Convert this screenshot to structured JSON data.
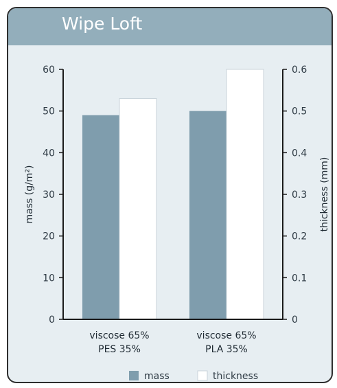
{
  "chart_data": {
    "type": "bar",
    "title": "Wipe Loft",
    "categories": [
      [
        "viscose  65%",
        "PES  35%"
      ],
      [
        "viscose  65%",
        "PLA  35%"
      ]
    ],
    "series": [
      {
        "name": "mass",
        "axis": "left",
        "values": [
          49,
          50
        ],
        "color": "#7f9dad"
      },
      {
        "name": "thickness",
        "axis": "right",
        "values": [
          0.53,
          0.6
        ],
        "color": "#ffffff"
      }
    ],
    "ylabel_left": "mass  (g/m²)",
    "ylabel_right": "thickness  (mm)",
    "ylim_left": [
      0,
      60
    ],
    "ylim_right": [
      0,
      0.6
    ],
    "yticks_left": [
      "0",
      "10",
      "20",
      "30",
      "40",
      "50",
      "60"
    ],
    "yticks_right": [
      "0",
      "0.1",
      "0.2",
      "0.3",
      "0.4",
      "0.5",
      "0.6"
    ],
    "grid": false,
    "legend": {
      "position": "bottom",
      "entries": [
        "mass",
        "thickness"
      ]
    },
    "colors": {
      "panel": "#e7eef2",
      "header": "#93aebb",
      "axis": "#1a1a1a"
    }
  }
}
